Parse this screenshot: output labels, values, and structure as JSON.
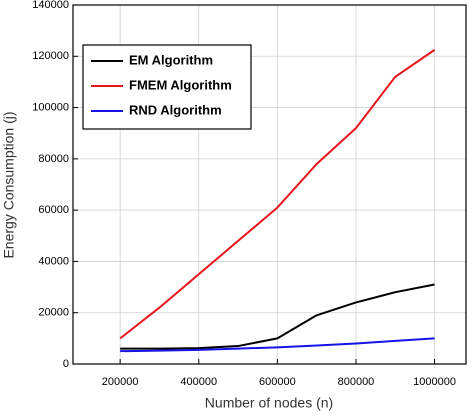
{
  "chart_data": {
    "type": "line",
    "x_label": "Number of nodes (n)",
    "y_label": "Energy Consumption (j)",
    "x": [
      200000,
      300000,
      400000,
      500000,
      600000,
      700000,
      800000,
      900000,
      1000000
    ],
    "series": [
      {
        "name": "EM Algorithm",
        "color": "#000000",
        "values": [
          6000,
          6000,
          6200,
          7000,
          10000,
          19000,
          24000,
          28000,
          31000
        ]
      },
      {
        "name": "FMEM Algorithm",
        "color": "#e8141c",
        "values": [
          10000,
          22000,
          35000,
          48000,
          61000,
          78000,
          92000,
          112000,
          122500
        ]
      },
      {
        "name": "RND Algorithm",
        "color": "#1414e6",
        "values": [
          5000,
          5200,
          5500,
          6000,
          6500,
          7200,
          8000,
          9000,
          10000
        ]
      }
    ],
    "xlim": [
      80000,
      1080000
    ],
    "ylim": [
      0,
      140000
    ],
    "xticks": [
      200000,
      400000,
      600000,
      800000,
      1000000
    ],
    "yticks": [
      0,
      20000,
      40000,
      60000,
      80000,
      100000,
      120000,
      140000
    ],
    "grid": true,
    "legend": "upper-left"
  }
}
